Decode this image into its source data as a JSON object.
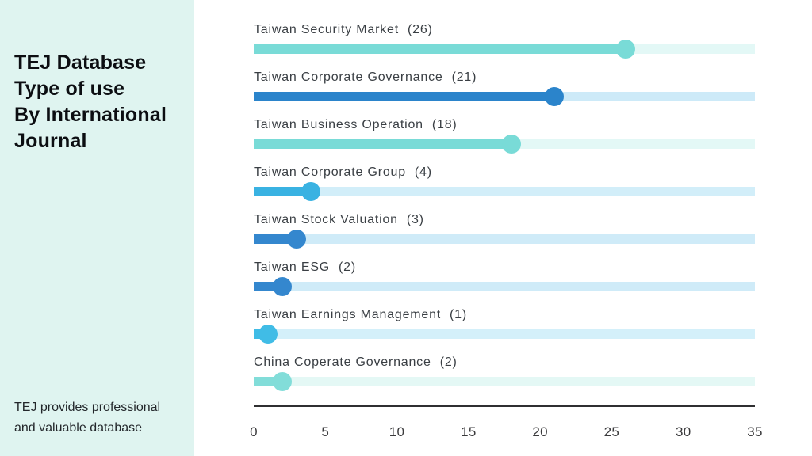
{
  "sidebar": {
    "title": "TEJ Database\nType of use\nBy International\nJournal",
    "footnote": "TEJ provides professional\nand valuable database",
    "background": "#DFF4F0",
    "title_color": "#0C0E12"
  },
  "chart_data": {
    "type": "bar",
    "style": "lollipop",
    "orientation": "horizontal",
    "title": "TEJ Database Type of use By International Journal",
    "categories": [
      "Taiwan Security Market",
      "Taiwan Corporate Governance",
      "Taiwan Business Operation",
      "Taiwan Corporate Group",
      "Taiwan Stock Valuation",
      "Taiwan ESG",
      "Taiwan Earnings Management",
      "China Coperate Governance"
    ],
    "values": [
      26,
      21,
      18,
      4,
      3,
      2,
      1,
      2
    ],
    "xlim": [
      0,
      35
    ],
    "xticks": [
      0,
      5,
      10,
      15,
      20,
      25,
      30,
      35
    ],
    "grid": false,
    "legend": false,
    "axis_color": "#2F2F31",
    "rows": [
      {
        "label": "Taiwan Security Market",
        "value": 26,
        "count_label": "(26)",
        "fill": "#79DBD7",
        "track": "#E3F8F6"
      },
      {
        "label": "Taiwan Corporate Governance",
        "value": 21,
        "count_label": "(21)",
        "fill": "#2B84CB",
        "track": "#CDEAF8"
      },
      {
        "label": "Taiwan Business Operation",
        "value": 18,
        "count_label": "(18)",
        "fill": "#79DBD7",
        "track": "#E3F8F6"
      },
      {
        "label": "Taiwan Corporate Group",
        "value": 4,
        "count_label": "(4)",
        "fill": "#39B2E2",
        "track": "#D2EEF9"
      },
      {
        "label": "Taiwan Stock Valuation",
        "value": 3,
        "count_label": "(3)",
        "fill": "#3487CE",
        "track": "#CFEBF8"
      },
      {
        "label": "Taiwan ESG",
        "value": 2,
        "count_label": "(2)",
        "fill": "#3487CE",
        "track": "#CFEBF8"
      },
      {
        "label": "Taiwan Earnings Management",
        "value": 1,
        "count_label": "(1)",
        "fill": "#40BCE6",
        "track": "#D4F0FA"
      },
      {
        "label": "China Coperate Governance",
        "value": 2,
        "count_label": "(2)",
        "fill": "#82DDD9",
        "track": "#E4F8F5"
      }
    ]
  }
}
